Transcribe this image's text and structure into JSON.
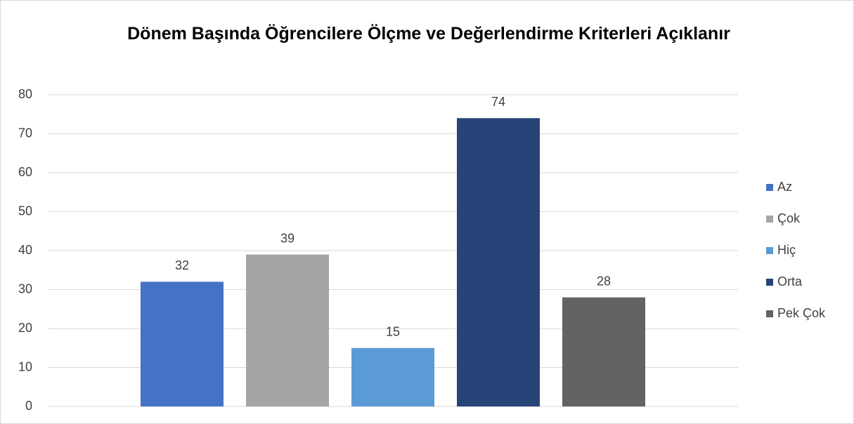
{
  "chart_data": {
    "type": "bar",
    "title": "Dönem Başında Öğrencilere Ölçme ve Değerlendirme Kriterleri Açıklanır",
    "categories": [
      null
    ],
    "series": [
      {
        "name": "Az",
        "color": "#4472c4",
        "values": [
          32
        ]
      },
      {
        "name": "Çok",
        "color": "#a5a5a5",
        "values": [
          39
        ]
      },
      {
        "name": "Hiç",
        "color": "#5b9bd5",
        "values": [
          15
        ]
      },
      {
        "name": "Orta",
        "color": "#264478",
        "values": [
          74
        ]
      },
      {
        "name": "Pek Çok",
        "color": "#636363",
        "values": [
          28
        ]
      }
    ],
    "ylim": [
      0,
      80
    ],
    "yticks": [
      0,
      10,
      20,
      30,
      40,
      50,
      60,
      70,
      80
    ],
    "grid": true,
    "legend": "right"
  }
}
